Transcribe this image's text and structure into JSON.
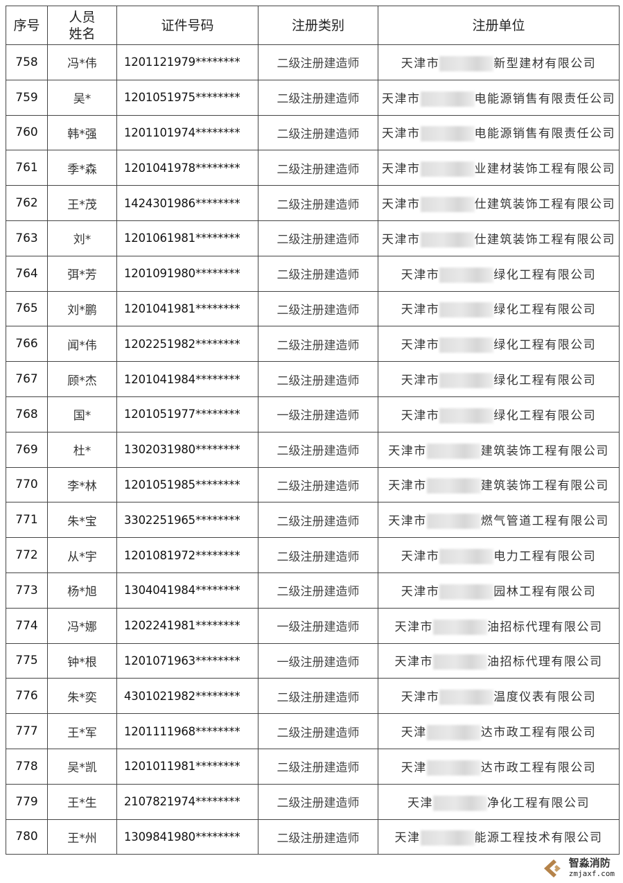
{
  "headers": {
    "no": "序号",
    "name": "人员\n姓名",
    "name_line1": "人员",
    "name_line2": "姓名",
    "cert": "证件号码",
    "category": "注册类别",
    "unit": "注册单位"
  },
  "rows": [
    {
      "no": "758",
      "name": "冯*伟",
      "cert": "1201121979********",
      "category": "二级注册建造师",
      "unit_prefix": "天津市",
      "unit_suffix": "新型建材有限公司"
    },
    {
      "no": "759",
      "name": "吴*",
      "cert": "1201051975********",
      "category": "二级注册建造师",
      "unit_prefix": "天津市",
      "unit_suffix": "电能源销售有限责任公司"
    },
    {
      "no": "760",
      "name": "韩*强",
      "cert": "1201101974********",
      "category": "二级注册建造师",
      "unit_prefix": "天津市",
      "unit_suffix": "电能源销售有限责任公司"
    },
    {
      "no": "761",
      "name": "季*森",
      "cert": "1201041978********",
      "category": "二级注册建造师",
      "unit_prefix": "天津市",
      "unit_suffix": "业建材装饰工程有限公司"
    },
    {
      "no": "762",
      "name": "王*茂",
      "cert": "1424301986********",
      "category": "二级注册建造师",
      "unit_prefix": "天津市",
      "unit_suffix": "仕建筑装饰工程有限公司"
    },
    {
      "no": "763",
      "name": "刘*",
      "cert": "1201061981********",
      "category": "二级注册建造师",
      "unit_prefix": "天津市",
      "unit_suffix": "仕建筑装饰工程有限公司"
    },
    {
      "no": "764",
      "name": "弭*芳",
      "cert": "1201091980********",
      "category": "二级注册建造师",
      "unit_prefix": "天津市",
      "unit_suffix": "绿化工程有限公司"
    },
    {
      "no": "765",
      "name": "刘*鹏",
      "cert": "1201041981********",
      "category": "二级注册建造师",
      "unit_prefix": "天津市",
      "unit_suffix": "绿化工程有限公司"
    },
    {
      "no": "766",
      "name": "闻*伟",
      "cert": "1202251982********",
      "category": "二级注册建造师",
      "unit_prefix": "天津市",
      "unit_suffix": "绿化工程有限公司"
    },
    {
      "no": "767",
      "name": "顾*杰",
      "cert": "1201041984********",
      "category": "二级注册建造师",
      "unit_prefix": "天津市",
      "unit_suffix": "绿化工程有限公司"
    },
    {
      "no": "768",
      "name": "国*",
      "cert": "1201051977********",
      "category": "一级注册建造师",
      "unit_prefix": "天津市",
      "unit_suffix": "绿化工程有限公司"
    },
    {
      "no": "769",
      "name": "杜*",
      "cert": "1302031980********",
      "category": "二级注册建造师",
      "unit_prefix": "天津市",
      "unit_suffix": "建筑装饰工程有限公司"
    },
    {
      "no": "770",
      "name": "李*林",
      "cert": "1201051985********",
      "category": "二级注册建造师",
      "unit_prefix": "天津市",
      "unit_suffix": "建筑装饰工程有限公司"
    },
    {
      "no": "771",
      "name": "朱*宝",
      "cert": "3302251965********",
      "category": "二级注册建造师",
      "unit_prefix": "天津市",
      "unit_suffix": "燃气管道工程有限公司"
    },
    {
      "no": "772",
      "name": "从*宇",
      "cert": "1201081972********",
      "category": "二级注册建造师",
      "unit_prefix": "天津市",
      "unit_suffix": "电力工程有限公司"
    },
    {
      "no": "773",
      "name": "杨*旭",
      "cert": "1304041984********",
      "category": "二级注册建造师",
      "unit_prefix": "天津市",
      "unit_suffix": "园林工程有限公司"
    },
    {
      "no": "774",
      "name": "冯*娜",
      "cert": "1202241981********",
      "category": "一级注册建造师",
      "unit_prefix": "天津市",
      "unit_suffix": "油招标代理有限公司"
    },
    {
      "no": "775",
      "name": "钟*根",
      "cert": "1201071963********",
      "category": "一级注册建造师",
      "unit_prefix": "天津市",
      "unit_suffix": "油招标代理有限公司"
    },
    {
      "no": "776",
      "name": "朱*奕",
      "cert": "4301021982********",
      "category": "二级注册建造师",
      "unit_prefix": "天津市",
      "unit_suffix": "温度仪表有限公司"
    },
    {
      "no": "777",
      "name": "王*军",
      "cert": "1201111968********",
      "category": "二级注册建造师",
      "unit_prefix": "天津",
      "unit_suffix": "达市政工程有限公司"
    },
    {
      "no": "778",
      "name": "吴*凯",
      "cert": "1201011981********",
      "category": "二级注册建造师",
      "unit_prefix": "天津",
      "unit_suffix": "达市政工程有限公司"
    },
    {
      "no": "779",
      "name": "王*生",
      "cert": "2107821974********",
      "category": "二级注册建造师",
      "unit_prefix": "天津",
      "unit_suffix": "净化工程有限公司"
    },
    {
      "no": "780",
      "name": "王*州",
      "cert": "1309841980********",
      "category": "二级注册建造师",
      "unit_prefix": "天津",
      "unit_suffix": "能源工程技术有限公司"
    }
  ],
  "watermark": {
    "name_cn": "智淼消防",
    "domain": "zmjaxf.com"
  }
}
